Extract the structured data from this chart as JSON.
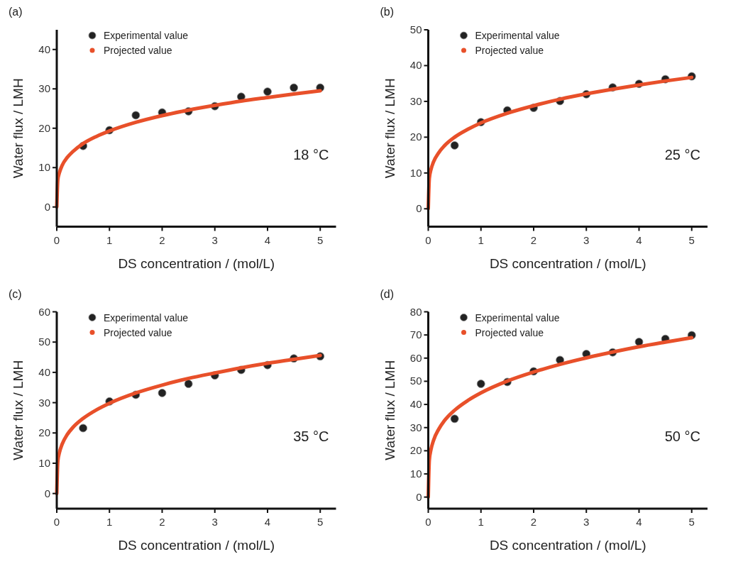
{
  "chart_data": [
    {
      "type": "scatter",
      "title": "(a)",
      "xlabel": "DS concentration / (mol/L)",
      "ylabel": "Water flux / LMH",
      "xlim": [
        0,
        5.3
      ],
      "xticks": [
        0,
        1,
        2,
        3,
        4,
        5
      ],
      "ylim": [
        -5,
        45
      ],
      "yticks": [
        0,
        10,
        20,
        30,
        40
      ],
      "legend": "top left",
      "grid": false,
      "annotations": [
        "18 °C"
      ],
      "series": [
        {
          "name": "Experimental value",
          "marker": "circle",
          "color": "#222222",
          "x": [
            0.5,
            1,
            1.5,
            2,
            2.5,
            3,
            3.5,
            4,
            4.5,
            5
          ],
          "values": [
            15.5,
            19.5,
            23.3,
            24,
            24.3,
            25.6,
            28,
            29.3,
            30.3,
            30.3
          ]
        },
        {
          "name": "Projected value",
          "type": "line",
          "line_style": "solid",
          "color": "#e8502a",
          "x": [
            0,
            0.02,
            0.05,
            0.1,
            0.2,
            0.3,
            0.5,
            0.75,
            1,
            1.5,
            2,
            2.5,
            3,
            3.5,
            4,
            4.5,
            5
          ],
          "values": [
            0,
            6.9,
            8.7,
            10.5,
            12.6,
            14.0,
            16.1,
            17.9,
            19.3,
            21.5,
            23.2,
            24.6,
            25.8,
            26.9,
            27.8,
            28.7,
            29.5
          ]
        }
      ]
    },
    {
      "type": "scatter",
      "title": "(b)",
      "xlabel": "DS concentration / (mol/L)",
      "ylabel": "Water flux / LMH",
      "xlim": [
        0,
        5.3
      ],
      "xticks": [
        0,
        1,
        2,
        3,
        4,
        5
      ],
      "ylim": [
        -5,
        50
      ],
      "yticks": [
        0,
        10,
        20,
        30,
        40,
        50
      ],
      "legend": "top left",
      "grid": false,
      "annotations": [
        "25 °C"
      ],
      "series": [
        {
          "name": "Experimental value",
          "marker": "circle",
          "color": "#222222",
          "x": [
            0.5,
            1,
            1.5,
            2,
            2.5,
            3,
            3.5,
            4,
            4.5,
            5
          ],
          "values": [
            17.7,
            24.2,
            27.5,
            28.2,
            30.1,
            32,
            33.9,
            34.9,
            36.2,
            37
          ]
        },
        {
          "name": "Projected value",
          "type": "line",
          "line_style": "solid",
          "color": "#e8502a",
          "x": [
            0,
            0.02,
            0.05,
            0.1,
            0.2,
            0.3,
            0.5,
            0.75,
            1,
            1.5,
            2,
            2.5,
            3,
            3.5,
            4,
            4.5,
            5
          ],
          "values": [
            0,
            8.5,
            10.9,
            13.1,
            15.7,
            17.5,
            20.0,
            22.2,
            24,
            26.7,
            28.8,
            30.6,
            32.1,
            33.4,
            34.6,
            35.7,
            36.7
          ]
        }
      ]
    },
    {
      "type": "scatter",
      "title": "(c)",
      "xlabel": "DS concentration / (mol/L)",
      "ylabel": "Water flux / LMH",
      "xlim": [
        0,
        5.3
      ],
      "xticks": [
        0,
        1,
        2,
        3,
        4,
        5
      ],
      "ylim": [
        -5,
        60
      ],
      "yticks": [
        0,
        10,
        20,
        30,
        40,
        50,
        60
      ],
      "legend": "top left",
      "grid": false,
      "annotations": [
        "35 °C"
      ],
      "series": [
        {
          "name": "Experimental value",
          "marker": "circle",
          "color": "#222222",
          "x": [
            0.5,
            1,
            1.5,
            2,
            2.5,
            3,
            3.5,
            4,
            4.5,
            5
          ],
          "values": [
            21.6,
            30.4,
            32.6,
            33.2,
            36.2,
            39,
            40.8,
            42.4,
            44.6,
            45.3
          ]
        },
        {
          "name": "Projected value",
          "type": "line",
          "line_style": "solid",
          "color": "#e8502a",
          "x": [
            0,
            0.02,
            0.05,
            0.1,
            0.2,
            0.3,
            0.5,
            0.75,
            1,
            1.5,
            2,
            2.5,
            3,
            3.5,
            4,
            4.5,
            5
          ],
          "values": [
            0,
            10.6,
            13.5,
            16.2,
            19.5,
            21.7,
            24.8,
            27.6,
            29.8,
            33.2,
            35.8,
            38.0,
            39.8,
            41.5,
            43.0,
            44.3,
            45.6
          ]
        }
      ]
    },
    {
      "type": "scatter",
      "title": "(d)",
      "xlabel": "DS concentration / (mol/L)",
      "ylabel": "Water flux / LMH",
      "xlim": [
        0,
        5.3
      ],
      "xticks": [
        0,
        1,
        2,
        3,
        4,
        5
      ],
      "ylim": [
        -5,
        80
      ],
      "yticks": [
        0,
        10,
        20,
        30,
        40,
        50,
        60,
        70,
        80
      ],
      "legend": "top left",
      "grid": false,
      "annotations": [
        "50 °C"
      ],
      "series": [
        {
          "name": "Experimental value",
          "marker": "circle",
          "color": "#222222",
          "x": [
            0.5,
            1,
            1.5,
            2,
            2.5,
            3,
            3.5,
            4,
            4.5,
            5
          ],
          "values": [
            33.8,
            48.9,
            49.7,
            54.3,
            59.2,
            61.8,
            62.5,
            67,
            68.3,
            69.9
          ]
        },
        {
          "name": "Projected value",
          "type": "line",
          "line_style": "solid",
          "color": "#e8502a",
          "x": [
            0,
            0.02,
            0.05,
            0.1,
            0.2,
            0.3,
            0.5,
            0.75,
            1,
            1.5,
            2,
            2.5,
            3,
            3.5,
            4,
            4.5,
            5
          ],
          "values": [
            0,
            16.0,
            20.4,
            24.5,
            29.4,
            32.8,
            37.5,
            41.7,
            45,
            50.1,
            54.0,
            57.3,
            60.1,
            62.6,
            64.9,
            66.9,
            68.8
          ]
        }
      ]
    }
  ]
}
